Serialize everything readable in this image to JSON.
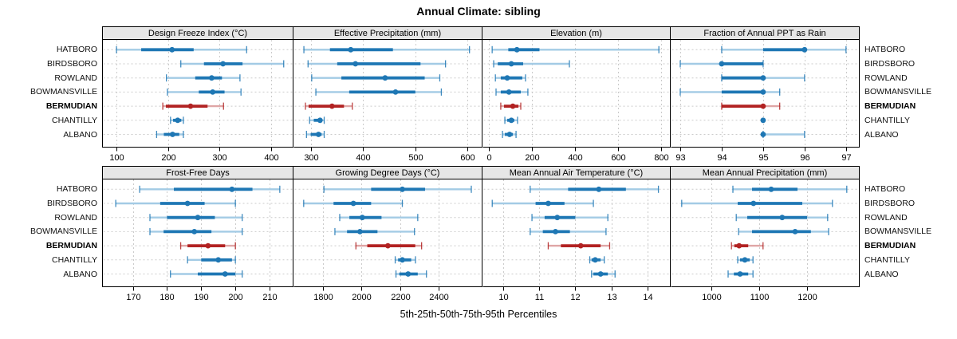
{
  "title": "Annual Climate: sibling",
  "xlabel": "5th-25th-50th-75th-95th Percentiles",
  "percentile_labels": [
    "5th",
    "25th",
    "50th",
    "75th",
    "95th"
  ],
  "locations": [
    "HATBORO",
    "BIRDSBORO",
    "ROWLAND",
    "BOWMANSVILLE",
    "BERMUDIAN",
    "CHANTILLY",
    "ALBANO"
  ],
  "highlight_location": "BERMUDIAN",
  "colors": {
    "series_blue": "#1E77B4",
    "series_blue_light": "#A3CBE5",
    "highlight_red": "#B22222",
    "highlight_red_light": "#DFA6A6",
    "grid": "#CBCBCB",
    "strip_bg": "#E6E6E6",
    "panel_border": "#000000",
    "background": "#FFFFFF"
  },
  "chart_data": [
    {
      "type": "dotplot-interval",
      "title": "Design Freeze Index (°C)",
      "ticks": [
        100,
        200,
        300,
        400
      ],
      "xlim": [
        72,
        444
      ],
      "values": [
        [
          100,
          148,
          208,
          250,
          353
        ],
        [
          225,
          270,
          307,
          345,
          425
        ],
        [
          197,
          253,
          285,
          305,
          340
        ],
        [
          199,
          260,
          287,
          310,
          342
        ],
        [
          190,
          196,
          244,
          277,
          308
        ],
        [
          205,
          210,
          219,
          226,
          230
        ],
        [
          178,
          192,
          209,
          222,
          230
        ]
      ]
    },
    {
      "type": "dotplot-interval",
      "title": "Effective Precipitation (mm)",
      "ticks": [
        300,
        400,
        500,
        600
      ],
      "xlim": [
        266,
        629
      ],
      "values": [
        [
          286,
          336,
          376,
          457,
          604
        ],
        [
          294,
          350,
          385,
          510,
          558
        ],
        [
          301,
          358,
          442,
          518,
          547
        ],
        [
          309,
          373,
          462,
          500,
          550
        ],
        [
          289,
          295,
          340,
          363,
          379
        ],
        [
          297,
          305,
          317,
          321,
          325
        ],
        [
          291,
          299,
          314,
          320,
          325
        ]
      ]
    },
    {
      "type": "dotplot-interval",
      "title": "Elevation (m)",
      "ticks": [
        0,
        200,
        400,
        600,
        800
      ],
      "xlim": [
        -30,
        845
      ],
      "values": [
        [
          15,
          90,
          130,
          235,
          790
        ],
        [
          22,
          41,
          104,
          159,
          374
        ],
        [
          30,
          55,
          85,
          155,
          170
        ],
        [
          33,
          55,
          93,
          148,
          181
        ],
        [
          55,
          70,
          111,
          137,
          148
        ],
        [
          74,
          85,
          104,
          118,
          133
        ],
        [
          63,
          74,
          96,
          111,
          126
        ]
      ]
    },
    {
      "type": "dotplot-interval",
      "title": "Fraction of Annual PPT as Rain",
      "ticks": [
        93,
        94,
        95,
        96,
        97
      ],
      "xlim": [
        92.77,
        97.33
      ],
      "values": [
        [
          94,
          95,
          96,
          96,
          97
        ],
        [
          93,
          94,
          94,
          95,
          95
        ],
        [
          94,
          94,
          95,
          95,
          96
        ],
        [
          93,
          94,
          95,
          95,
          95.4
        ],
        [
          94,
          94,
          95,
          95,
          95.4
        ],
        [
          95,
          95,
          95,
          95,
          95
        ],
        [
          95,
          95,
          95,
          95,
          96
        ]
      ]
    },
    {
      "type": "dotplot-interval",
      "title": "Frost-Free Days",
      "ticks": [
        170,
        180,
        190,
        200,
        210
      ],
      "xlim": [
        161,
        217
      ],
      "values": [
        [
          172,
          182,
          199,
          205,
          213
        ],
        [
          165,
          178,
          186,
          191,
          200
        ],
        [
          175,
          180,
          189,
          194,
          202
        ],
        [
          175,
          179,
          188,
          193,
          202
        ],
        [
          184,
          186,
          192,
          197,
          200
        ],
        [
          186,
          190,
          195,
          199,
          200
        ],
        [
          181,
          189,
          197,
          200,
          202
        ]
      ]
    },
    {
      "type": "dotplot-interval",
      "title": "Growing Degree Days (°C)",
      "ticks": [
        1800,
        2000,
        2200,
        2400
      ],
      "xlim": [
        1647,
        2628
      ],
      "values": [
        [
          1805,
          2050,
          2212,
          2330,
          2570
        ],
        [
          1700,
          1855,
          1958,
          2050,
          2212
        ],
        [
          1887,
          1937,
          2004,
          2104,
          2292
        ],
        [
          1862,
          1925,
          1992,
          2083,
          2275
        ],
        [
          1971,
          2030,
          2137,
          2279,
          2312
        ],
        [
          2175,
          2190,
          2212,
          2258,
          2280
        ],
        [
          2179,
          2196,
          2242,
          2292,
          2337
        ]
      ]
    },
    {
      "type": "dotplot-interval",
      "title": "Mean Annual Air Temperature (°C)",
      "ticks": [
        10,
        11,
        12,
        13,
        14
      ],
      "xlim": [
        9.43,
        14.64
      ],
      "values": [
        [
          10.75,
          11.8,
          12.65,
          13.4,
          14.3
        ],
        [
          9.7,
          10.9,
          11.25,
          11.7,
          12.5
        ],
        [
          10.8,
          11.15,
          11.5,
          12.0,
          12.9
        ],
        [
          10.75,
          11.1,
          11.45,
          11.85,
          12.85
        ],
        [
          11.25,
          11.6,
          12.15,
          12.7,
          12.95
        ],
        [
          12.4,
          12.45,
          12.55,
          12.7,
          12.8
        ],
        [
          12.45,
          12.5,
          12.7,
          12.9,
          13.1
        ]
      ]
    },
    {
      "type": "dotplot-interval",
      "title": "Mean Annual Precipitation (mm)",
      "ticks": [
        1000,
        1100,
        1200
      ],
      "xlim": [
        915,
        1310
      ],
      "values": [
        [
          1045,
          1085,
          1125,
          1180,
          1283
        ],
        [
          938,
          1055,
          1088,
          1190,
          1253
        ],
        [
          1052,
          1075,
          1148,
          1200,
          1243
        ],
        [
          1057,
          1085,
          1175,
          1208,
          1245
        ],
        [
          1042,
          1048,
          1058,
          1077,
          1108
        ],
        [
          1055,
          1060,
          1070,
          1080,
          1087
        ],
        [
          1035,
          1047,
          1060,
          1077,
          1087
        ]
      ]
    }
  ]
}
